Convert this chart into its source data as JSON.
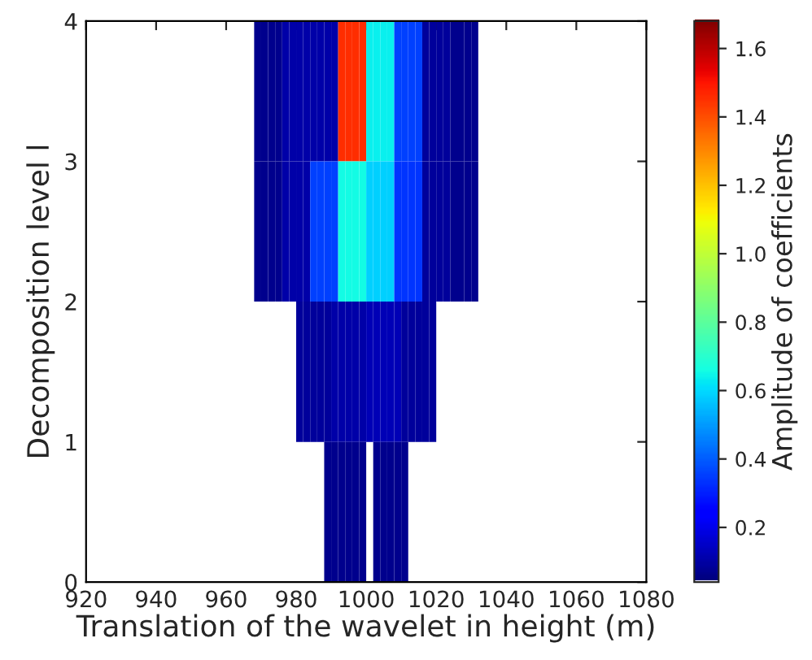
{
  "chart_data": {
    "type": "heatmap",
    "xlabel": "Translation of the wavelet in height (m)",
    "ylabel": "Decomposition level l",
    "clabel": "Amplitude of coefficients",
    "x": [
      969,
      971,
      973,
      975,
      977,
      979,
      981,
      983,
      985,
      987,
      989,
      991,
      993,
      995,
      997,
      999,
      1001,
      1003,
      1005,
      1007,
      1009,
      1011,
      1013,
      1015,
      1017,
      1019,
      1021,
      1023,
      1025,
      1027,
      1029,
      1031
    ],
    "cells": [
      [
        0.06,
        0.06,
        0.06,
        0.06,
        0.1,
        0.1,
        0.1,
        0.1,
        0.1,
        0.1,
        0.1,
        0.1,
        1.45,
        1.45,
        1.45,
        1.45,
        0.63,
        0.63,
        0.63,
        0.63,
        0.35,
        0.35,
        0.35,
        0.35,
        0.08,
        0.08,
        0.08,
        0.08,
        0.06,
        0.06,
        0.06,
        0.06
      ],
      [
        0.06,
        0.06,
        0.06,
        0.06,
        0.1,
        0.1,
        0.1,
        0.1,
        0.35,
        0.35,
        0.35,
        0.35,
        0.65,
        0.65,
        0.65,
        0.65,
        0.58,
        0.58,
        0.58,
        0.58,
        0.33,
        0.33,
        0.33,
        0.33,
        0.08,
        0.08,
        0.08,
        0.08,
        0.06,
        0.06,
        0.06,
        0.06
      ],
      [
        null,
        null,
        null,
        null,
        null,
        null,
        0.08,
        0.08,
        0.08,
        0.08,
        0.08,
        0.1,
        0.1,
        0.1,
        0.1,
        0.1,
        0.12,
        0.12,
        0.12,
        0.12,
        0.12,
        0.08,
        0.08,
        0.08,
        0.08,
        0.08,
        null,
        null,
        null,
        null,
        null,
        null
      ],
      [
        null,
        null,
        null,
        null,
        null,
        null,
        null,
        null,
        null,
        null,
        0.06,
        0.06,
        0.06,
        0.06,
        0.06,
        0.06,
        null,
        0.06,
        0.06,
        0.06,
        0.06,
        0.06,
        null,
        null,
        null,
        null,
        null,
        null,
        null,
        null,
        null,
        null
      ]
    ],
    "xlim": [
      920,
      1080
    ],
    "xticks": [
      920,
      940,
      960,
      980,
      1000,
      1020,
      1040,
      1060,
      1080
    ],
    "ylim": [
      0,
      4
    ],
    "yticks": [
      0,
      1,
      2,
      3,
      4
    ],
    "clim": [
      0.04,
      1.68
    ],
    "cticks": [
      0.2,
      0.4,
      0.6,
      0.8,
      {
        "value": 1.0,
        "label": "1.0"
      },
      1.2,
      1.4,
      1.6
    ],
    "grid": false
  }
}
